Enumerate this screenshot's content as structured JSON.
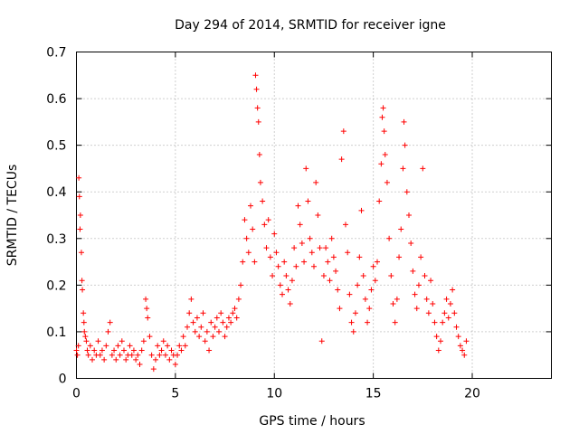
{
  "chart_data": {
    "type": "scatter",
    "title": "Day 294 of 2014, SRMTID for receiver igne",
    "xlabel": "GPS time / hours",
    "ylabel": "SRMTID / TECUs",
    "xlim": [
      0,
      24
    ],
    "ylim": [
      0,
      0.7
    ],
    "xticks": [
      0,
      5,
      10,
      15,
      20
    ],
    "yticks": [
      0,
      0.1,
      0.2,
      0.3,
      0.4,
      0.5,
      0.6,
      0.7
    ],
    "xtick_labels": [
      "0",
      "5",
      "10",
      "15",
      "20"
    ],
    "ytick_labels": [
      "0",
      "0.1",
      "0.2",
      "0.3",
      "0.4",
      "0.5",
      "0.6",
      "0.7"
    ],
    "grid": true,
    "marker": "+",
    "color": "#ff0000",
    "series": [
      {
        "name": "SRMTID",
        "points": [
          [
            0.0,
            0.06
          ],
          [
            0.05,
            0.05
          ],
          [
            0.1,
            0.07
          ],
          [
            0.12,
            0.43
          ],
          [
            0.15,
            0.39
          ],
          [
            0.18,
            0.32
          ],
          [
            0.2,
            0.35
          ],
          [
            0.25,
            0.27
          ],
          [
            0.28,
            0.21
          ],
          [
            0.3,
            0.19
          ],
          [
            0.35,
            0.14
          ],
          [
            0.38,
            0.12
          ],
          [
            0.4,
            0.1
          ],
          [
            0.45,
            0.09
          ],
          [
            0.5,
            0.08
          ],
          [
            0.55,
            0.06
          ],
          [
            0.6,
            0.05
          ],
          [
            0.7,
            0.07
          ],
          [
            0.8,
            0.04
          ],
          [
            0.9,
            0.06
          ],
          [
            1.0,
            0.05
          ],
          [
            1.1,
            0.08
          ],
          [
            1.2,
            0.05
          ],
          [
            1.3,
            0.06
          ],
          [
            1.4,
            0.04
          ],
          [
            1.5,
            0.07
          ],
          [
            1.6,
            0.1
          ],
          [
            1.7,
            0.12
          ],
          [
            1.8,
            0.05
          ],
          [
            1.9,
            0.06
          ],
          [
            2.0,
            0.04
          ],
          [
            2.1,
            0.07
          ],
          [
            2.2,
            0.05
          ],
          [
            2.3,
            0.08
          ],
          [
            2.4,
            0.06
          ],
          [
            2.5,
            0.04
          ],
          [
            2.6,
            0.05
          ],
          [
            2.7,
            0.07
          ],
          [
            2.8,
            0.05
          ],
          [
            2.9,
            0.06
          ],
          [
            3.0,
            0.04
          ],
          [
            3.1,
            0.05
          ],
          [
            3.2,
            0.03
          ],
          [
            3.3,
            0.06
          ],
          [
            3.4,
            0.08
          ],
          [
            3.5,
            0.17
          ],
          [
            3.55,
            0.15
          ],
          [
            3.6,
            0.13
          ],
          [
            3.7,
            0.09
          ],
          [
            3.8,
            0.05
          ],
          [
            3.9,
            0.02
          ],
          [
            4.0,
            0.04
          ],
          [
            4.1,
            0.07
          ],
          [
            4.2,
            0.05
          ],
          [
            4.3,
            0.06
          ],
          [
            4.4,
            0.08
          ],
          [
            4.5,
            0.05
          ],
          [
            4.6,
            0.07
          ],
          [
            4.7,
            0.04
          ],
          [
            4.8,
            0.06
          ],
          [
            4.9,
            0.05
          ],
          [
            5.0,
            0.03
          ],
          [
            5.1,
            0.05
          ],
          [
            5.2,
            0.07
          ],
          [
            5.3,
            0.06
          ],
          [
            5.4,
            0.09
          ],
          [
            5.5,
            0.07
          ],
          [
            5.6,
            0.11
          ],
          [
            5.7,
            0.14
          ],
          [
            5.8,
            0.17
          ],
          [
            5.9,
            0.12
          ],
          [
            6.0,
            0.1
          ],
          [
            6.1,
            0.13
          ],
          [
            6.2,
            0.09
          ],
          [
            6.3,
            0.11
          ],
          [
            6.4,
            0.14
          ],
          [
            6.5,
            0.08
          ],
          [
            6.6,
            0.1
          ],
          [
            6.7,
            0.06
          ],
          [
            6.8,
            0.12
          ],
          [
            6.9,
            0.09
          ],
          [
            7.0,
            0.11
          ],
          [
            7.1,
            0.13
          ],
          [
            7.2,
            0.1
          ],
          [
            7.3,
            0.14
          ],
          [
            7.4,
            0.12
          ],
          [
            7.5,
            0.09
          ],
          [
            7.6,
            0.11
          ],
          [
            7.7,
            0.13
          ],
          [
            7.8,
            0.12
          ],
          [
            7.9,
            0.14
          ],
          [
            8.0,
            0.15
          ],
          [
            8.1,
            0.13
          ],
          [
            8.2,
            0.17
          ],
          [
            8.3,
            0.2
          ],
          [
            8.4,
            0.25
          ],
          [
            8.5,
            0.34
          ],
          [
            8.6,
            0.3
          ],
          [
            8.7,
            0.27
          ],
          [
            8.8,
            0.37
          ],
          [
            8.9,
            0.32
          ],
          [
            9.0,
            0.25
          ],
          [
            9.05,
            0.65
          ],
          [
            9.1,
            0.62
          ],
          [
            9.15,
            0.58
          ],
          [
            9.2,
            0.55
          ],
          [
            9.25,
            0.48
          ],
          [
            9.3,
            0.42
          ],
          [
            9.4,
            0.38
          ],
          [
            9.5,
            0.33
          ],
          [
            9.6,
            0.28
          ],
          [
            9.7,
            0.34
          ],
          [
            9.8,
            0.26
          ],
          [
            9.9,
            0.22
          ],
          [
            10.0,
            0.31
          ],
          [
            10.1,
            0.27
          ],
          [
            10.2,
            0.24
          ],
          [
            10.3,
            0.2
          ],
          [
            10.4,
            0.18
          ],
          [
            10.5,
            0.25
          ],
          [
            10.6,
            0.22
          ],
          [
            10.7,
            0.19
          ],
          [
            10.8,
            0.16
          ],
          [
            10.9,
            0.21
          ],
          [
            11.0,
            0.28
          ],
          [
            11.1,
            0.24
          ],
          [
            11.2,
            0.37
          ],
          [
            11.3,
            0.33
          ],
          [
            11.4,
            0.29
          ],
          [
            11.5,
            0.25
          ],
          [
            11.6,
            0.45
          ],
          [
            11.7,
            0.38
          ],
          [
            11.8,
            0.3
          ],
          [
            11.9,
            0.27
          ],
          [
            12.0,
            0.24
          ],
          [
            12.1,
            0.42
          ],
          [
            12.2,
            0.35
          ],
          [
            12.3,
            0.28
          ],
          [
            12.4,
            0.08
          ],
          [
            12.5,
            0.22
          ],
          [
            12.6,
            0.28
          ],
          [
            12.7,
            0.25
          ],
          [
            12.8,
            0.21
          ],
          [
            12.9,
            0.3
          ],
          [
            13.0,
            0.26
          ],
          [
            13.1,
            0.23
          ],
          [
            13.2,
            0.19
          ],
          [
            13.3,
            0.15
          ],
          [
            13.4,
            0.47
          ],
          [
            13.5,
            0.53
          ],
          [
            13.6,
            0.33
          ],
          [
            13.7,
            0.27
          ],
          [
            13.8,
            0.18
          ],
          [
            13.9,
            0.12
          ],
          [
            14.0,
            0.1
          ],
          [
            14.1,
            0.14
          ],
          [
            14.2,
            0.2
          ],
          [
            14.3,
            0.26
          ],
          [
            14.4,
            0.36
          ],
          [
            14.5,
            0.22
          ],
          [
            14.6,
            0.17
          ],
          [
            14.7,
            0.12
          ],
          [
            14.8,
            0.15
          ],
          [
            14.9,
            0.19
          ],
          [
            15.0,
            0.24
          ],
          [
            15.1,
            0.21
          ],
          [
            15.2,
            0.25
          ],
          [
            15.3,
            0.38
          ],
          [
            15.4,
            0.46
          ],
          [
            15.45,
            0.56
          ],
          [
            15.5,
            0.58
          ],
          [
            15.55,
            0.53
          ],
          [
            15.6,
            0.48
          ],
          [
            15.7,
            0.42
          ],
          [
            15.8,
            0.3
          ],
          [
            15.9,
            0.22
          ],
          [
            16.0,
            0.16
          ],
          [
            16.1,
            0.12
          ],
          [
            16.2,
            0.17
          ],
          [
            16.3,
            0.26
          ],
          [
            16.4,
            0.32
          ],
          [
            16.5,
            0.45
          ],
          [
            16.55,
            0.55
          ],
          [
            16.6,
            0.5
          ],
          [
            16.7,
            0.4
          ],
          [
            16.8,
            0.35
          ],
          [
            16.9,
            0.29
          ],
          [
            17.0,
            0.23
          ],
          [
            17.1,
            0.18
          ],
          [
            17.2,
            0.15
          ],
          [
            17.3,
            0.2
          ],
          [
            17.4,
            0.26
          ],
          [
            17.5,
            0.45
          ],
          [
            17.6,
            0.22
          ],
          [
            17.7,
            0.17
          ],
          [
            17.8,
            0.14
          ],
          [
            17.9,
            0.21
          ],
          [
            18.0,
            0.16
          ],
          [
            18.1,
            0.12
          ],
          [
            18.2,
            0.09
          ],
          [
            18.3,
            0.06
          ],
          [
            18.4,
            0.08
          ],
          [
            18.5,
            0.12
          ],
          [
            18.6,
            0.14
          ],
          [
            18.7,
            0.17
          ],
          [
            18.8,
            0.13
          ],
          [
            18.9,
            0.16
          ],
          [
            19.0,
            0.19
          ],
          [
            19.1,
            0.14
          ],
          [
            19.2,
            0.11
          ],
          [
            19.3,
            0.09
          ],
          [
            19.4,
            0.07
          ],
          [
            19.5,
            0.06
          ],
          [
            19.6,
            0.05
          ],
          [
            19.7,
            0.08
          ]
        ]
      }
    ]
  }
}
